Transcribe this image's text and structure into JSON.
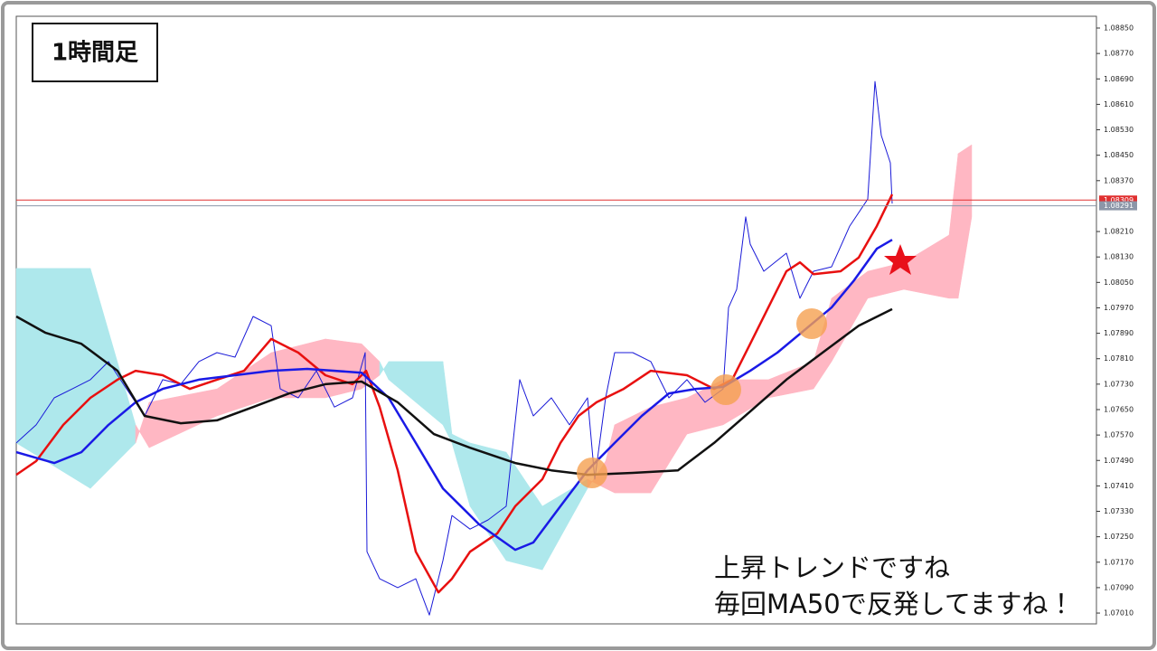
{
  "chart_data": {
    "type": "line",
    "title": "1時間足",
    "annotations": [
      "上昇トレンドですね",
      "毎回MA50で反発してますね！"
    ],
    "xlim": [
      0,
      149.375
    ],
    "ylim": [
      1.06976,
      1.08887
    ],
    "yticks": [
      {
        "value": 1.0885,
        "label": "1.08850"
      },
      {
        "value": 1.0877,
        "label": "1.08770"
      },
      {
        "value": 1.0869,
        "label": "1.08690"
      },
      {
        "value": 1.0861,
        "label": "1.08610"
      },
      {
        "value": 1.0853,
        "label": "1.08530"
      },
      {
        "value": 1.0845,
        "label": "1.08450"
      },
      {
        "value": 1.0837,
        "label": "1.08370"
      },
      {
        "value": 1.0821,
        "label": "1.08210"
      },
      {
        "value": 1.0813,
        "label": "1.08130"
      },
      {
        "value": 1.0805,
        "label": "1.08050"
      },
      {
        "value": 1.0797,
        "label": "1.07970"
      },
      {
        "value": 1.0789,
        "label": "1.07890"
      },
      {
        "value": 1.0781,
        "label": "1.07810"
      },
      {
        "value": 1.0773,
        "label": "1.07730"
      },
      {
        "value": 1.0765,
        "label": "1.07650"
      },
      {
        "value": 1.0757,
        "label": "1.07570"
      },
      {
        "value": 1.0749,
        "label": "1.07490"
      },
      {
        "value": 1.0741,
        "label": "1.07410"
      },
      {
        "value": 1.0733,
        "label": "1.07330"
      },
      {
        "value": 1.0725,
        "label": "1.07250"
      },
      {
        "value": 1.0717,
        "label": "1.07170"
      },
      {
        "value": 1.0709,
        "label": "1.07090"
      },
      {
        "value": 1.0701,
        "label": "1.07010"
      }
    ],
    "price_lines": [
      {
        "value": 1.08309,
        "color": "#e03030"
      },
      {
        "value": 1.08291,
        "color": "#8c96a8"
      }
    ],
    "cloud": {
      "up_color": "#aee8ec",
      "down_color": "#ffb7c3",
      "x": [
        0,
        10.25,
        16.5,
        18.375,
        27.75,
        35.25,
        42.75,
        47.75,
        50.25,
        51.5,
        59,
        60.25,
        62.75,
        67.75,
        72.75,
        79,
        81.5,
        82.75,
        87.75,
        92.75,
        97.75,
        104,
        110.25,
        112.75,
        117.75,
        122.75,
        129,
        130.25,
        132.125
      ],
      "span_a": [
        1.08094,
        1.08094,
        1.07602,
        1.0753,
        1.0763,
        1.07687,
        1.07687,
        1.07715,
        1.07758,
        1.07801,
        1.07801,
        1.07573,
        1.07545,
        1.07516,
        1.07346,
        1.07431,
        1.07402,
        1.07388,
        1.07388,
        1.07573,
        1.07602,
        1.07687,
        1.07715,
        1.07801,
        1.08,
        1.08028,
        1.08,
        1.08,
        1.08256
      ],
      "span_b": [
        1.07545,
        1.07402,
        1.07545,
        1.07673,
        1.07715,
        1.07829,
        1.07872,
        1.07857,
        1.07801,
        1.07744,
        1.07602,
        1.07545,
        1.07346,
        1.07175,
        1.07146,
        1.07402,
        1.07488,
        1.07602,
        1.07658,
        1.07687,
        1.07744,
        1.07744,
        1.07801,
        1.08,
        1.08085,
        1.08113,
        1.08199,
        1.08455,
        1.08483
      ]
    },
    "series": [
      {
        "color": "#1a1ad8",
        "width": 1,
        "x": [
          0,
          2.75,
          5.25,
          7.75,
          10.25,
          12.75,
          15.25,
          17.75,
          20.25,
          22.75,
          25.25,
          27.75,
          30.25,
          32.75,
          35.25,
          36.5,
          39,
          41.5,
          44,
          46.5,
          48.25,
          48.5,
          50.25,
          52.75,
          55.25,
          57.125,
          59,
          60.25,
          62.75,
          65.25,
          67.75,
          69.625,
          71.5,
          74,
          76.5,
          79,
          80,
          81.5,
          82.75,
          85.25,
          87.75,
          90.25,
          92.75,
          95.25,
          97.75,
          98.5,
          99.625,
          100.875,
          101.5,
          103.375,
          106.5,
          108.375,
          110.25,
          112.75,
          115.25,
          117.75,
          118.75,
          119.625,
          120.875,
          121.125
        ],
        "values": [
          1.07545,
          1.07602,
          1.07687,
          1.07715,
          1.07744,
          1.07801,
          1.07715,
          1.0763,
          1.07744,
          1.0773,
          1.07801,
          1.07829,
          1.07815,
          1.07943,
          1.07914,
          1.07715,
          1.07687,
          1.07772,
          1.07658,
          1.07687,
          1.07829,
          1.07203,
          1.07118,
          1.0709,
          1.07118,
          1.07004,
          1.07175,
          1.07317,
          1.07274,
          1.07303,
          1.07346,
          1.07744,
          1.0763,
          1.07687,
          1.07602,
          1.07687,
          1.07431,
          1.07687,
          1.07829,
          1.07829,
          1.07801,
          1.07687,
          1.07744,
          1.07673,
          1.07715,
          1.07971,
          1.08028,
          1.08256,
          1.0817,
          1.08085,
          1.08142,
          1.08,
          1.08085,
          1.08099,
          1.08227,
          1.08312,
          1.08682,
          1.08512,
          1.08426,
          1.08298
        ]
      },
      {
        "color": "#e81010",
        "width": 2.5,
        "x": [
          0,
          2.75,
          6.5,
          10.25,
          14,
          16.5,
          20.25,
          24,
          27.75,
          31.5,
          35.25,
          39,
          42.75,
          46.5,
          48.375,
          50.25,
          52.75,
          55.25,
          58.375,
          60.25,
          62.75,
          66.5,
          69,
          72.75,
          75.25,
          77.75,
          80.25,
          84,
          87.75,
          92.75,
          96.5,
          99,
          101.5,
          104,
          106.5,
          108.375,
          110.25,
          114,
          116.5,
          119,
          121.125
        ],
        "values": [
          1.07445,
          1.07488,
          1.07602,
          1.07687,
          1.07744,
          1.07772,
          1.07758,
          1.07715,
          1.07744,
          1.07772,
          1.07872,
          1.07829,
          1.07758,
          1.0773,
          1.07772,
          1.07658,
          1.07459,
          1.07203,
          1.07075,
          1.07118,
          1.07203,
          1.0726,
          1.07346,
          1.07431,
          1.07545,
          1.0763,
          1.07673,
          1.07715,
          1.07772,
          1.07758,
          1.07715,
          1.07744,
          1.07857,
          1.07971,
          1.08085,
          1.08113,
          1.08076,
          1.08085,
          1.08128,
          1.08227,
          1.08327
        ]
      },
      {
        "color": "#1a1ae6",
        "width": 2.5,
        "x": [
          0,
          5.25,
          9,
          12.75,
          16.5,
          20.25,
          25.25,
          30.25,
          35.25,
          40.25,
          47.75,
          51.5,
          55.25,
          59,
          64,
          69,
          71.5,
          75.25,
          79,
          82.75,
          86.5,
          90.25,
          94,
          97.75,
          101.5,
          105.25,
          109,
          112.75,
          115.875,
          119,
          121.125
        ],
        "values": [
          1.07516,
          1.07482,
          1.07516,
          1.07602,
          1.07673,
          1.07715,
          1.07744,
          1.07758,
          1.07772,
          1.07778,
          1.07766,
          1.07687,
          1.07545,
          1.07402,
          1.07289,
          1.07209,
          1.07232,
          1.07346,
          1.07459,
          1.07545,
          1.0763,
          1.07701,
          1.07715,
          1.07721,
          1.07772,
          1.07829,
          1.079,
          1.07971,
          1.08057,
          1.08156,
          1.08184
        ]
      },
      {
        "color": "#111111",
        "width": 2.5,
        "x": [
          0,
          4,
          9,
          14,
          17.75,
          22.75,
          27.75,
          32.75,
          37.75,
          42.75,
          47.75,
          52.75,
          57.75,
          62.75,
          69,
          74,
          79,
          85.25,
          91.5,
          96.5,
          101.5,
          106.5,
          111.5,
          116.5,
          121.125
        ],
        "values": [
          1.07943,
          1.07892,
          1.07857,
          1.07772,
          1.0763,
          1.07607,
          1.07616,
          1.07658,
          1.07701,
          1.0773,
          1.07738,
          1.07673,
          1.07573,
          1.0753,
          1.07482,
          1.07459,
          1.07445,
          1.07451,
          1.07459,
          1.07545,
          1.07644,
          1.07744,
          1.07829,
          1.07914,
          1.07966
        ]
      }
    ]
  }
}
